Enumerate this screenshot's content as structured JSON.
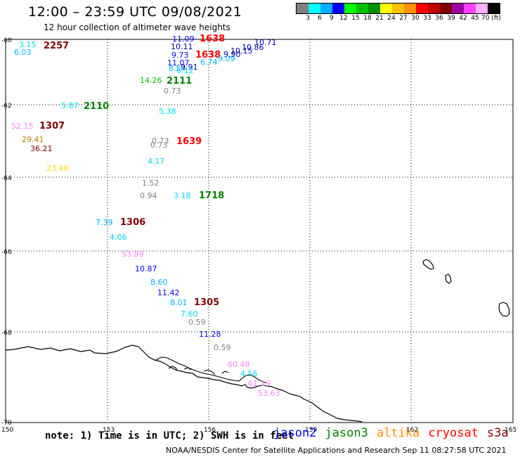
{
  "header": {
    "title": "12:00 – 23:59 UTC 09/08/2021",
    "subtitle": "12 hour collection of altimeter wave heights"
  },
  "legend": {
    "colors": [
      "#808080",
      "#00ffff",
      "#00b0ff",
      "#0000ff",
      "#00ff00",
      "#00c000",
      "#009000",
      "#ffff00",
      "#ffc000",
      "#ff9000",
      "#ff0000",
      "#c00000",
      "#800000",
      "#a000a0",
      "#ff40ff",
      "#ffb0ff",
      "#000000"
    ],
    "ticks": [
      "3",
      "6",
      "9",
      "12",
      "15",
      "18",
      "21",
      "24",
      "27",
      "30",
      "33",
      "36",
      "39",
      "42",
      "45",
      "70 (ft)"
    ]
  },
  "axes": {
    "x_ticks": [
      "150",
      "153",
      "156",
      "159",
      "162",
      "165"
    ],
    "y_ticks": [
      "-60",
      "-62",
      "-64",
      "-66",
      "-68",
      "-70"
    ]
  },
  "map_labels": [
    {
      "t": "3.15",
      "c": "#00d8ff"
    },
    {
      "t": "6.03",
      "c": "#00b0ff"
    },
    {
      "t": "2257",
      "c": "#800000",
      "kind": "time"
    },
    {
      "t": "11.09",
      "c": "#0000ff"
    },
    {
      "t": "1638",
      "c": "#ff0000",
      "kind": "time"
    },
    {
      "t": "10.11",
      "c": "#0000b0"
    },
    {
      "t": "10.71",
      "c": "#0000b0"
    },
    {
      "t": "10.86",
      "c": "#0000b0"
    },
    {
      "t": "10.15",
      "c": "#0000b0"
    },
    {
      "t": "9.73",
      "c": "#0000ff"
    },
    {
      "t": "1638",
      "c": "#ff0000",
      "kind": "time"
    },
    {
      "t": "9.90",
      "c": "#0000b0"
    },
    {
      "t": "9.09",
      "c": "#00b0ff"
    },
    {
      "t": "6.74",
      "c": "#00b0ff"
    },
    {
      "t": "11.07",
      "c": "#0000ff"
    },
    {
      "t": "8.54",
      "c": "#00b0ff"
    },
    {
      "t": "9.91",
      "c": "#0000b0"
    },
    {
      "t": "6.12",
      "c": "#00d8ff"
    },
    {
      "t": "14.26",
      "c": "#00c000"
    },
    {
      "t": "2111",
      "c": "#008000",
      "kind": "time"
    },
    {
      "t": "0.73",
      "c": "#808080"
    },
    {
      "t": "5.87",
      "c": "#00d8ff"
    },
    {
      "t": "2110",
      "c": "#008000",
      "kind": "time"
    },
    {
      "t": "5.38",
      "c": "#00d8ff"
    },
    {
      "t": "52.15",
      "c": "#ff80ff"
    },
    {
      "t": "1307",
      "c": "#800000",
      "kind": "time"
    },
    {
      "t": "29.41",
      "c": "#c08000"
    },
    {
      "t": "36.21",
      "c": "#800000"
    },
    {
      "t": "0.73",
      "c": "#808080"
    },
    {
      "t": "0.73",
      "c": "#808080"
    },
    {
      "t": "1639",
      "c": "#ff0000",
      "kind": "time"
    },
    {
      "t": "4.17",
      "c": "#00d8ff"
    },
    {
      "t": "23.46",
      "c": "#ffd800"
    },
    {
      "t": "1.52",
      "c": "#808080"
    },
    {
      "t": "0.94",
      "c": "#808080"
    },
    {
      "t": "3.18",
      "c": "#00d8ff"
    },
    {
      "t": "1718",
      "c": "#008000",
      "kind": "time"
    },
    {
      "t": "7.39",
      "c": "#00b0ff"
    },
    {
      "t": "1306",
      "c": "#800000",
      "kind": "time"
    },
    {
      "t": "4.06",
      "c": "#00d8ff"
    },
    {
      "t": "53.89",
      "c": "#ff80ff"
    },
    {
      "t": "10.87",
      "c": "#0000ff"
    },
    {
      "t": "8.60",
      "c": "#00b0ff"
    },
    {
      "t": "11.42",
      "c": "#0000ff"
    },
    {
      "t": "8.01",
      "c": "#00b0ff"
    },
    {
      "t": "1305",
      "c": "#800000",
      "kind": "time"
    },
    {
      "t": "7.60",
      "c": "#00d8ff"
    },
    {
      "t": "0.59",
      "c": "#808080"
    },
    {
      "t": "11.28",
      "c": "#0000ff"
    },
    {
      "t": "0.59",
      "c": "#808080"
    },
    {
      "t": "60.48",
      "c": "#ff80ff"
    },
    {
      "t": "4.56",
      "c": "#00d8ff"
    },
    {
      "t": "61.19",
      "c": "#ff80ff"
    },
    {
      "t": "53.63",
      "c": "#ff80ff"
    }
  ],
  "footer": {
    "note": "note: 1) Time is in UTC; 2) SWH is in feet",
    "satellites": [
      {
        "name": "jason2",
        "color": "#0000ff"
      },
      {
        "name": "jason3",
        "color": "#008000"
      },
      {
        "name": "altika",
        "color": "#ff9000"
      },
      {
        "name": "cryosat",
        "color": "#ff0000"
      },
      {
        "name": "s3a",
        "color": "#800000"
      }
    ],
    "credit": "NOAA/NESDIS Center for Satellite Applications and Research    Sep 11 08:27:58 UTC 2021"
  }
}
